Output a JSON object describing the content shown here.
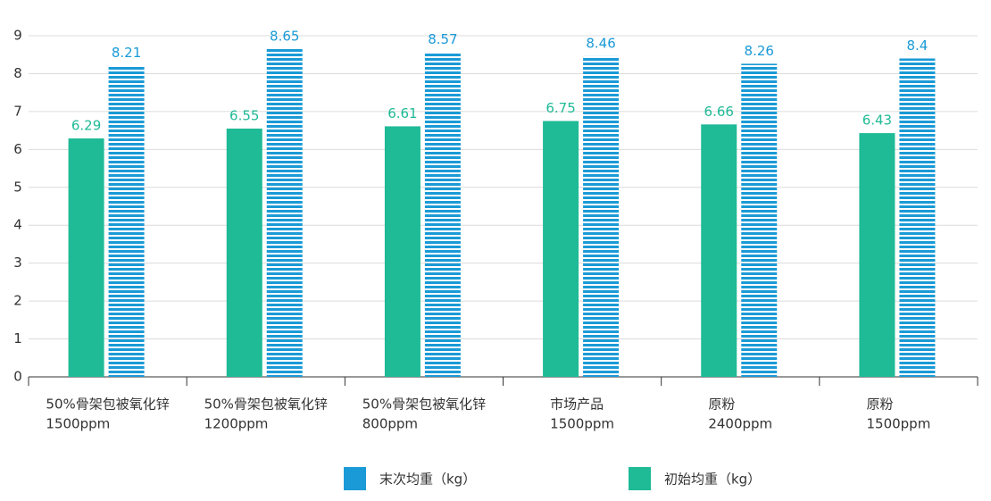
{
  "chart_data": {
    "type": "bar",
    "categories": [
      [
        "50%骨架包被氧化锌",
        "1500ppm"
      ],
      [
        "50%骨架包被氧化锌",
        "1200ppm"
      ],
      [
        "50%骨架包被氧化锌",
        "800ppm"
      ],
      [
        "市场产品",
        "1500ppm"
      ],
      [
        "原粉",
        "2400ppm"
      ],
      [
        "原粉",
        "1500ppm"
      ]
    ],
    "series": [
      {
        "name": "末次均重（kg）",
        "color": "#1a9ad6",
        "striped": true,
        "values": [
          8.21,
          8.65,
          8.57,
          8.46,
          8.26,
          8.4
        ]
      },
      {
        "name": "初始均重（kg）",
        "color": "#1fba96",
        "striped": false,
        "values": [
          6.29,
          6.55,
          6.61,
          6.75,
          6.66,
          6.43
        ]
      }
    ],
    "ylim": [
      0,
      9
    ],
    "yticks": [
      0,
      1,
      2,
      3,
      4,
      5,
      6,
      7,
      8,
      9
    ],
    "grid": true,
    "legend": "bottom"
  }
}
